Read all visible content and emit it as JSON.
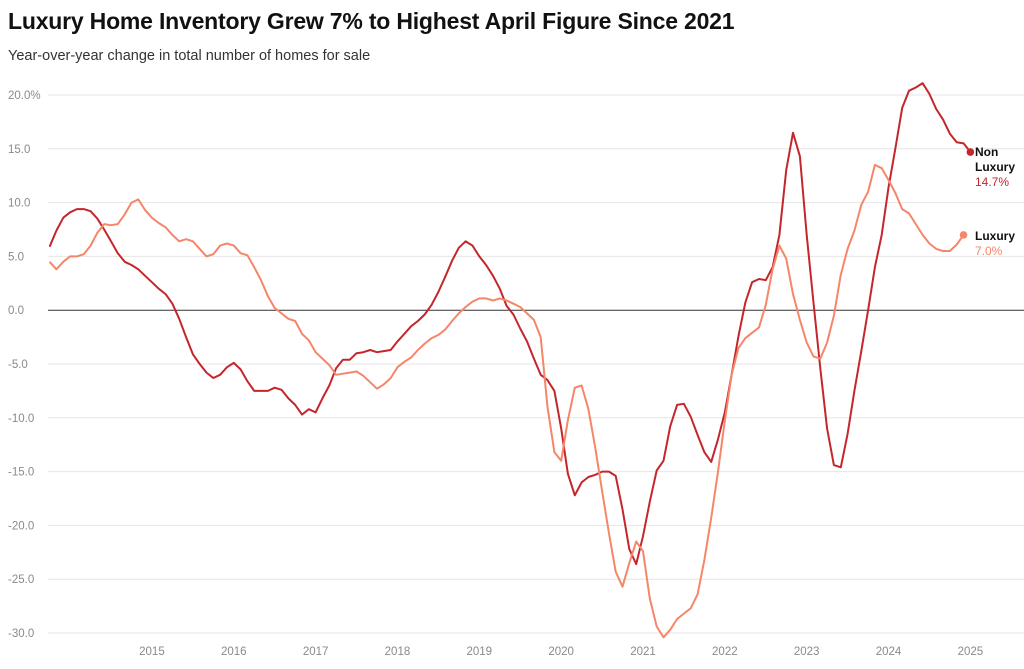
{
  "header": {
    "title": "Luxury Home Inventory Grew 7% to Highest April Figure Since 2021",
    "subtitle": "Year-over-year change in total number of homes for sale"
  },
  "colors": {
    "non_luxury": "#c4262c",
    "luxury": "#f5866a",
    "grid": "#e6e6e6",
    "zero_line": "#333333"
  },
  "chart_data": {
    "type": "line",
    "title": "Luxury Home Inventory Grew 7% to Highest April Figure Since 2021",
    "subtitle": "Year-over-year change in total number of homes for sale",
    "ylim": [
      -30,
      20
    ],
    "xlim": [
      2014.23,
      2025.52
    ],
    "y_ticks": [
      "20.0%",
      "15.0",
      "10.0",
      "5.0",
      "0.0",
      "-5.0",
      "-10.0",
      "-15.0",
      "-20.0",
      "-25.0",
      "-30.0"
    ],
    "x_ticks": [
      "2015",
      "2016",
      "2017",
      "2018",
      "2019",
      "2020",
      "2021",
      "2022",
      "2023",
      "2024",
      "2025"
    ],
    "grid": true,
    "legend": "end-of-line labels",
    "series": [
      {
        "name": "Non Luxury",
        "name_lines": [
          "Non",
          "Luxury"
        ],
        "end_label": "14.7%",
        "points": [
          [
            2014.25,
            5.9
          ],
          [
            2014.333,
            7.4
          ],
          [
            2014.417,
            8.6
          ],
          [
            2014.5,
            9.1
          ],
          [
            2014.583,
            9.4
          ],
          [
            2014.667,
            9.4
          ],
          [
            2014.75,
            9.2
          ],
          [
            2014.833,
            8.5
          ],
          [
            2014.917,
            7.5
          ],
          [
            2015.0,
            6.4
          ],
          [
            2015.083,
            5.3
          ],
          [
            2015.167,
            4.5
          ],
          [
            2015.25,
            4.2
          ],
          [
            2015.333,
            3.8
          ],
          [
            2015.417,
            3.2
          ],
          [
            2015.5,
            2.6
          ],
          [
            2015.583,
            2.0
          ],
          [
            2015.667,
            1.5
          ],
          [
            2015.75,
            0.6
          ],
          [
            2015.833,
            -0.8
          ],
          [
            2015.917,
            -2.5
          ],
          [
            2016.0,
            -4.1
          ],
          [
            2016.083,
            -5.0
          ],
          [
            2016.167,
            -5.8
          ],
          [
            2016.25,
            -6.3
          ],
          [
            2016.333,
            -6.0
          ],
          [
            2016.417,
            -5.3
          ],
          [
            2016.5,
            -4.9
          ],
          [
            2016.583,
            -5.5
          ],
          [
            2016.667,
            -6.6
          ],
          [
            2016.75,
            -7.5
          ],
          [
            2016.833,
            -7.5
          ],
          [
            2016.917,
            -7.5
          ],
          [
            2017.0,
            -7.2
          ],
          [
            2017.083,
            -7.4
          ],
          [
            2017.167,
            -8.2
          ],
          [
            2017.25,
            -8.8
          ],
          [
            2017.333,
            -9.7
          ],
          [
            2017.417,
            -9.2
          ],
          [
            2017.5,
            -9.5
          ],
          [
            2017.583,
            -8.2
          ],
          [
            2017.667,
            -7.0
          ],
          [
            2017.75,
            -5.4
          ],
          [
            2017.833,
            -4.6
          ],
          [
            2017.917,
            -4.6
          ],
          [
            2018.0,
            -4.0
          ],
          [
            2018.083,
            -3.9
          ],
          [
            2018.167,
            -3.7
          ],
          [
            2018.25,
            -3.9
          ],
          [
            2018.333,
            -3.8
          ],
          [
            2018.417,
            -3.7
          ],
          [
            2018.5,
            -2.9
          ],
          [
            2018.583,
            -2.2
          ],
          [
            2018.667,
            -1.5
          ],
          [
            2018.75,
            -1.0
          ],
          [
            2018.833,
            -0.4
          ],
          [
            2018.917,
            0.5
          ],
          [
            2019.0,
            1.7
          ],
          [
            2019.083,
            3.1
          ],
          [
            2019.167,
            4.6
          ],
          [
            2019.25,
            5.8
          ],
          [
            2019.333,
            6.4
          ],
          [
            2019.417,
            6.0
          ],
          [
            2019.5,
            5.0
          ],
          [
            2019.583,
            4.2
          ],
          [
            2019.667,
            3.2
          ],
          [
            2019.75,
            2.0
          ],
          [
            2019.833,
            0.4
          ],
          [
            2019.917,
            -0.4
          ],
          [
            2020.0,
            -1.7
          ],
          [
            2020.083,
            -2.9
          ],
          [
            2020.167,
            -4.5
          ],
          [
            2020.25,
            -6.0
          ],
          [
            2020.333,
            -6.5
          ],
          [
            2020.417,
            -7.5
          ],
          [
            2020.5,
            -11.0
          ],
          [
            2020.583,
            -15.2
          ],
          [
            2020.667,
            -17.2
          ],
          [
            2020.75,
            -16.0
          ],
          [
            2020.833,
            -15.5
          ],
          [
            2020.917,
            -15.3
          ],
          [
            2021.0,
            -15.0
          ],
          [
            2021.083,
            -15.0
          ],
          [
            2021.167,
            -15.4
          ],
          [
            2021.25,
            -18.5
          ],
          [
            2021.333,
            -22.2
          ],
          [
            2021.417,
            -23.6
          ],
          [
            2021.5,
            -21.0
          ],
          [
            2021.583,
            -17.8
          ],
          [
            2021.667,
            -14.9
          ],
          [
            2021.75,
            -14.0
          ],
          [
            2021.833,
            -10.8
          ],
          [
            2021.917,
            -8.8
          ],
          [
            2022.0,
            -8.7
          ],
          [
            2022.083,
            -9.9
          ],
          [
            2022.167,
            -11.6
          ],
          [
            2022.25,
            -13.2
          ],
          [
            2022.333,
            -14.1
          ],
          [
            2022.417,
            -12.0
          ],
          [
            2022.5,
            -9.5
          ],
          [
            2022.583,
            -6.0
          ],
          [
            2022.667,
            -2.4
          ],
          [
            2022.75,
            0.7
          ],
          [
            2022.833,
            2.6
          ],
          [
            2022.917,
            2.9
          ],
          [
            2023.0,
            2.8
          ],
          [
            2023.083,
            4.0
          ],
          [
            2023.167,
            7.0
          ],
          [
            2023.25,
            13.0
          ],
          [
            2023.333,
            16.5
          ],
          [
            2023.417,
            14.3
          ],
          [
            2023.5,
            7.0
          ],
          [
            2023.583,
            0.7
          ],
          [
            2023.667,
            -5.4
          ],
          [
            2023.75,
            -11.0
          ],
          [
            2023.833,
            -14.4
          ],
          [
            2023.917,
            -14.6
          ],
          [
            2024.0,
            -11.5
          ],
          [
            2024.083,
            -7.5
          ],
          [
            2024.167,
            -3.8
          ],
          [
            2024.25,
            0.0
          ],
          [
            2024.333,
            4.0
          ],
          [
            2024.417,
            7.0
          ],
          [
            2024.5,
            11.4
          ],
          [
            2024.583,
            15.0
          ],
          [
            2024.667,
            18.8
          ],
          [
            2024.75,
            20.4
          ],
          [
            2024.833,
            20.7
          ],
          [
            2024.917,
            21.1
          ],
          [
            2025.0,
            20.1
          ],
          [
            2025.083,
            18.7
          ],
          [
            2025.167,
            17.7
          ],
          [
            2025.25,
            16.4
          ],
          [
            2025.333,
            15.6
          ],
          [
            2025.417,
            15.5
          ],
          [
            2025.5,
            14.7
          ]
        ]
      },
      {
        "name": "Luxury",
        "name_lines": [
          "Luxury"
        ],
        "end_label": "7.0%",
        "points": [
          [
            2014.25,
            4.5
          ],
          [
            2014.333,
            3.8
          ],
          [
            2014.417,
            4.5
          ],
          [
            2014.5,
            5.0
          ],
          [
            2014.583,
            5.0
          ],
          [
            2014.667,
            5.2
          ],
          [
            2014.75,
            6.0
          ],
          [
            2014.833,
            7.2
          ],
          [
            2014.917,
            8.0
          ],
          [
            2015.0,
            7.9
          ],
          [
            2015.083,
            8.0
          ],
          [
            2015.167,
            8.9
          ],
          [
            2015.25,
            10.0
          ],
          [
            2015.333,
            10.3
          ],
          [
            2015.417,
            9.3
          ],
          [
            2015.5,
            8.6
          ],
          [
            2015.583,
            8.1
          ],
          [
            2015.667,
            7.7
          ],
          [
            2015.75,
            7.0
          ],
          [
            2015.833,
            6.4
          ],
          [
            2015.917,
            6.6
          ],
          [
            2016.0,
            6.4
          ],
          [
            2016.083,
            5.7
          ],
          [
            2016.167,
            5.0
          ],
          [
            2016.25,
            5.2
          ],
          [
            2016.333,
            6.0
          ],
          [
            2016.417,
            6.2
          ],
          [
            2016.5,
            6.0
          ],
          [
            2016.583,
            5.3
          ],
          [
            2016.667,
            5.1
          ],
          [
            2016.75,
            4.0
          ],
          [
            2016.833,
            2.8
          ],
          [
            2016.917,
            1.3
          ],
          [
            2017.0,
            0.2
          ],
          [
            2017.083,
            -0.3
          ],
          [
            2017.167,
            -0.8
          ],
          [
            2017.25,
            -1.0
          ],
          [
            2017.333,
            -2.2
          ],
          [
            2017.417,
            -2.8
          ],
          [
            2017.5,
            -3.9
          ],
          [
            2017.583,
            -4.5
          ],
          [
            2017.667,
            -5.1
          ],
          [
            2017.75,
            -6.0
          ],
          [
            2017.833,
            -5.9
          ],
          [
            2017.917,
            -5.8
          ],
          [
            2018.0,
            -5.7
          ],
          [
            2018.083,
            -6.1
          ],
          [
            2018.167,
            -6.7
          ],
          [
            2018.25,
            -7.3
          ],
          [
            2018.333,
            -6.9
          ],
          [
            2018.417,
            -6.3
          ],
          [
            2018.5,
            -5.3
          ],
          [
            2018.583,
            -4.8
          ],
          [
            2018.667,
            -4.4
          ],
          [
            2018.75,
            -3.7
          ],
          [
            2018.833,
            -3.1
          ],
          [
            2018.917,
            -2.6
          ],
          [
            2019.0,
            -2.3
          ],
          [
            2019.083,
            -1.8
          ],
          [
            2019.167,
            -1.0
          ],
          [
            2019.25,
            -0.3
          ],
          [
            2019.333,
            0.3
          ],
          [
            2019.417,
            0.8
          ],
          [
            2019.5,
            1.1
          ],
          [
            2019.583,
            1.1
          ],
          [
            2019.667,
            0.9
          ],
          [
            2019.75,
            1.1
          ],
          [
            2019.833,
            0.9
          ],
          [
            2019.917,
            0.6
          ],
          [
            2020.0,
            0.3
          ],
          [
            2020.083,
            -0.3
          ],
          [
            2020.167,
            -0.9
          ],
          [
            2020.25,
            -2.5
          ],
          [
            2020.333,
            -9.0
          ],
          [
            2020.417,
            -13.2
          ],
          [
            2020.5,
            -14.0
          ],
          [
            2020.583,
            -10.2
          ],
          [
            2020.667,
            -7.2
          ],
          [
            2020.75,
            -7.0
          ],
          [
            2020.833,
            -9.2
          ],
          [
            2020.917,
            -12.8
          ],
          [
            2021.0,
            -16.8
          ],
          [
            2021.083,
            -20.7
          ],
          [
            2021.167,
            -24.3
          ],
          [
            2021.25,
            -25.7
          ],
          [
            2021.333,
            -23.5
          ],
          [
            2021.417,
            -21.5
          ],
          [
            2021.5,
            -22.4
          ],
          [
            2021.583,
            -26.8
          ],
          [
            2021.667,
            -29.4
          ],
          [
            2021.75,
            -30.4
          ],
          [
            2021.833,
            -29.7
          ],
          [
            2021.917,
            -28.7
          ],
          [
            2022.0,
            -28.2
          ],
          [
            2022.083,
            -27.7
          ],
          [
            2022.167,
            -26.4
          ],
          [
            2022.25,
            -23.2
          ],
          [
            2022.333,
            -19.3
          ],
          [
            2022.417,
            -15.0
          ],
          [
            2022.5,
            -10.3
          ],
          [
            2022.583,
            -6.0
          ],
          [
            2022.667,
            -3.5
          ],
          [
            2022.75,
            -2.6
          ],
          [
            2022.833,
            -2.1
          ],
          [
            2022.917,
            -1.6
          ],
          [
            2023.0,
            0.5
          ],
          [
            2023.083,
            3.8
          ],
          [
            2023.167,
            6.0
          ],
          [
            2023.25,
            4.8
          ],
          [
            2023.333,
            1.5
          ],
          [
            2023.417,
            -0.9
          ],
          [
            2023.5,
            -3.0
          ],
          [
            2023.583,
            -4.3
          ],
          [
            2023.667,
            -4.5
          ],
          [
            2023.75,
            -3.0
          ],
          [
            2023.833,
            -0.5
          ],
          [
            2023.917,
            3.3
          ],
          [
            2024.0,
            5.7
          ],
          [
            2024.083,
            7.4
          ],
          [
            2024.167,
            9.8
          ],
          [
            2024.25,
            11.0
          ],
          [
            2024.333,
            13.5
          ],
          [
            2024.417,
            13.2
          ],
          [
            2024.5,
            12.1
          ],
          [
            2024.583,
            10.9
          ],
          [
            2024.667,
            9.4
          ],
          [
            2024.75,
            9.0
          ],
          [
            2024.833,
            8.0
          ],
          [
            2024.917,
            7.0
          ],
          [
            2025.0,
            6.2
          ],
          [
            2025.083,
            5.7
          ],
          [
            2025.167,
            5.5
          ],
          [
            2025.25,
            5.5
          ],
          [
            2025.333,
            6.1
          ],
          [
            2025.417,
            7.0
          ]
        ]
      }
    ]
  }
}
